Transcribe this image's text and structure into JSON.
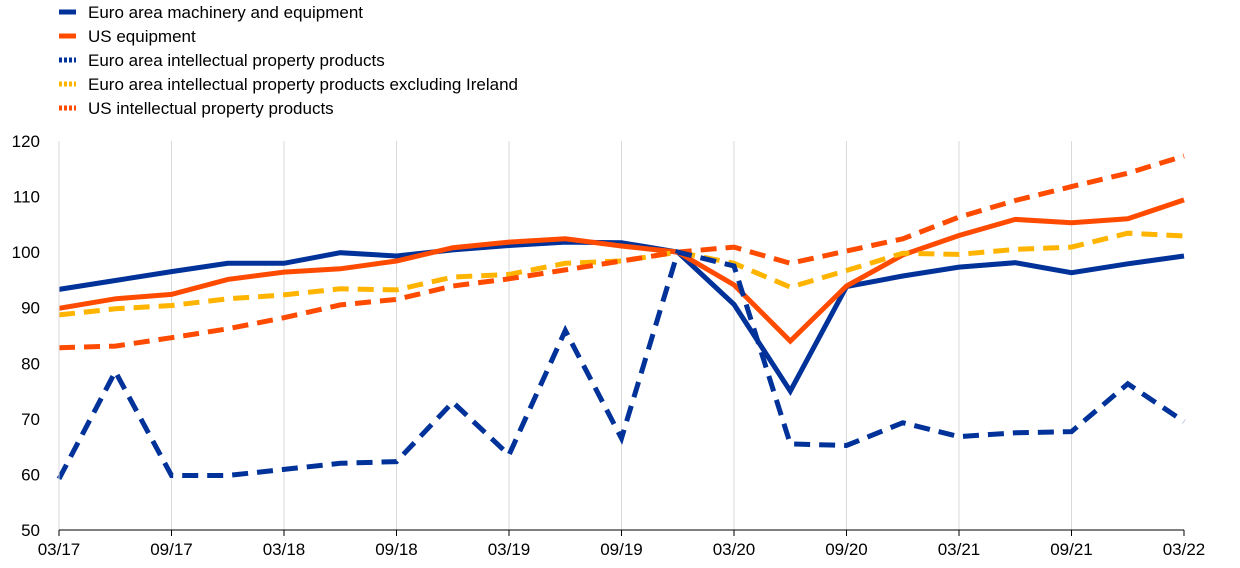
{
  "chart_data": {
    "type": "line",
    "title": "",
    "xlabel": "",
    "ylabel": "",
    "ylim": [
      50,
      120
    ],
    "yticks": [
      50,
      60,
      70,
      80,
      90,
      100,
      110,
      120
    ],
    "grid": "vertical",
    "legend_position": "top-left",
    "x": [
      "03/17",
      "06/17",
      "09/17",
      "12/17",
      "03/18",
      "06/18",
      "09/18",
      "12/18",
      "03/19",
      "06/19",
      "09/19",
      "12/19",
      "03/20",
      "06/20",
      "09/20",
      "12/20",
      "03/21",
      "06/21",
      "09/21",
      "12/21",
      "03/22"
    ],
    "xtick_labels": [
      "03/17",
      "09/17",
      "03/18",
      "09/18",
      "03/19",
      "09/19",
      "03/20",
      "09/20",
      "03/21",
      "09/21",
      "03/22"
    ],
    "series": [
      {
        "name": "Euro area machinery and equipment",
        "color": "#003299",
        "dash": "solid",
        "values": [
          93.3,
          94.9,
          96.5,
          98.0,
          98.0,
          99.9,
          99.3,
          100.4,
          101.2,
          101.8,
          101.7,
          100.0,
          90.6,
          75.0,
          93.8,
          95.7,
          97.3,
          98.1,
          96.3,
          97.9,
          99.3
        ]
      },
      {
        "name": "US equipment",
        "color": "#FF4B00",
        "dash": "solid",
        "values": [
          89.9,
          91.6,
          92.4,
          95.1,
          96.4,
          97.0,
          98.4,
          100.8,
          101.8,
          102.4,
          101.1,
          100.0,
          94.1,
          84.0,
          93.9,
          99.5,
          103.0,
          105.9,
          105.3,
          106.0,
          109.4
        ]
      },
      {
        "name": "Euro area intellectual property products",
        "color": "#003299",
        "dash": "dashed",
        "values": [
          59.2,
          78.5,
          59.8,
          59.8,
          60.9,
          62.0,
          62.3,
          73.0,
          63.5,
          85.9,
          66.5,
          100.0,
          97.5,
          65.5,
          65.2,
          69.3,
          66.8,
          67.5,
          67.7,
          76.3,
          69.5
        ]
      },
      {
        "name": "Euro area intellectual property products excluding Ireland",
        "color": "#FFB400",
        "dash": "dashed",
        "values": [
          88.7,
          89.8,
          90.4,
          91.6,
          92.3,
          93.4,
          93.2,
          95.5,
          96.0,
          98.0,
          98.4,
          100.0,
          98.0,
          93.7,
          96.7,
          99.8,
          99.6,
          100.5,
          100.9,
          103.4,
          102.9
        ]
      },
      {
        "name": "US intellectual property products",
        "color": "#FF4B00",
        "dash": "dashed",
        "values": [
          82.8,
          83.1,
          84.6,
          86.2,
          88.2,
          90.5,
          91.5,
          93.9,
          95.2,
          96.8,
          98.4,
          100.0,
          100.9,
          98.0,
          100.2,
          102.4,
          106.3,
          109.3,
          111.8,
          114.2,
          117.3
        ]
      }
    ]
  }
}
